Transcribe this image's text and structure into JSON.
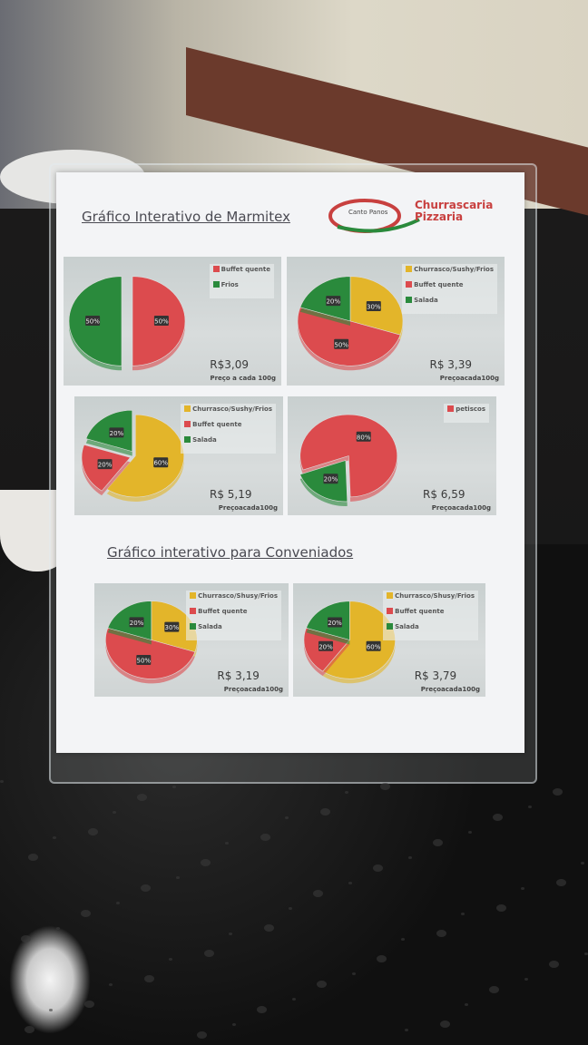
{
  "page": {
    "title_main": "Gráfico Interativo de Marmitex",
    "title_conv": "Gráfico interativo para Conveniados",
    "logo_text": "Churrascaria Pizzaria",
    "logo_script": "Canto Panos"
  },
  "colors": {
    "yellow": "#e3b52a",
    "red": "#dc4b4e",
    "green": "#2a8a3c"
  },
  "chart_data": [
    {
      "type": "pie",
      "group": "Marmitex",
      "price": "R$3,09",
      "unit": "Preço a cada 100g",
      "legend": [
        {
          "name": "Buffet quente",
          "color": "#dc4b4e"
        },
        {
          "name": "Frios",
          "color": "#2a8a3c"
        }
      ],
      "slices": [
        {
          "name": "Buffet quente",
          "value": 50,
          "label": "50%",
          "color": "#dc4b4e"
        },
        {
          "name": "Frios",
          "value": 50,
          "label": "50%",
          "color": "#2a8a3c"
        }
      ]
    },
    {
      "type": "pie",
      "group": "Marmitex",
      "price": "R$ 3,39",
      "unit": "Preçoacada100g",
      "legend": [
        {
          "name": "Churrasco/Sushy/Frios",
          "color": "#e3b52a"
        },
        {
          "name": "Buffet quente",
          "color": "#dc4b4e"
        },
        {
          "name": "Salada",
          "color": "#2a8a3c"
        }
      ],
      "slices": [
        {
          "name": "Churrasco/Sushy/Frios",
          "value": 30,
          "label": "30%",
          "color": "#e3b52a"
        },
        {
          "name": "Buffet quente",
          "value": 50,
          "label": "50%",
          "color": "#dc4b4e"
        },
        {
          "name": "Salada",
          "value": 20,
          "label": "20%",
          "color": "#2a8a3c"
        }
      ]
    },
    {
      "type": "pie",
      "group": "Marmitex",
      "price": "R$ 5,19",
      "unit": "Preçoacada100g",
      "legend": [
        {
          "name": "Churrasco/Sushy/Frios",
          "color": "#e3b52a"
        },
        {
          "name": "Buffet quente",
          "color": "#dc4b4e"
        },
        {
          "name": "Salada",
          "color": "#2a8a3c"
        }
      ],
      "slices": [
        {
          "name": "Churrasco/Sushy/Frios",
          "value": 60,
          "label": "60%",
          "color": "#e3b52a"
        },
        {
          "name": "Buffet quente",
          "value": 20,
          "label": "20%",
          "color": "#dc4b4e"
        },
        {
          "name": "Salada",
          "value": 20,
          "label": "20%",
          "color": "#2a8a3c"
        }
      ]
    },
    {
      "type": "pie",
      "group": "Marmitex",
      "price": "R$ 6,59",
      "unit": "Preçoacada100g",
      "legend": [
        {
          "name": "petiscos",
          "color": "#dc4b4e"
        }
      ],
      "slices": [
        {
          "name": "petiscos",
          "value": 80,
          "label": "80%",
          "color": "#dc4b4e"
        },
        {
          "name": "",
          "value": 20,
          "label": "20%",
          "color": "#2a8a3c"
        }
      ]
    },
    {
      "type": "pie",
      "group": "Conveniados",
      "price": "R$ 3,19",
      "unit": "Preçoacada100g",
      "legend": [
        {
          "name": "Churrasco/Shusy/Frios",
          "color": "#e3b52a"
        },
        {
          "name": "Buffet quente",
          "color": "#dc4b4e"
        },
        {
          "name": "Salada",
          "color": "#2a8a3c"
        }
      ],
      "slices": [
        {
          "name": "Churrasco/Shusy/Frios",
          "value": 30,
          "label": "30%",
          "color": "#e3b52a"
        },
        {
          "name": "Buffet quente",
          "value": 50,
          "label": "50%",
          "color": "#dc4b4e"
        },
        {
          "name": "Salada",
          "value": 20,
          "label": "20%",
          "color": "#2a8a3c"
        }
      ]
    },
    {
      "type": "pie",
      "group": "Conveniados",
      "price": "R$ 3,79",
      "unit": "Preçoacada100g",
      "legend": [
        {
          "name": "Churrasco/Shusy/Frios",
          "color": "#e3b52a"
        },
        {
          "name": "Buffet quente",
          "color": "#dc4b4e"
        },
        {
          "name": "Salada",
          "color": "#2a8a3c"
        }
      ],
      "slices": [
        {
          "name": "Churrasco/Shusy/Frios",
          "value": 60,
          "label": "60%",
          "color": "#e3b52a"
        },
        {
          "name": "Buffet quente",
          "value": 20,
          "label": "20%",
          "color": "#dc4b4e"
        },
        {
          "name": "Salada",
          "value": 20,
          "label": "20%",
          "color": "#2a8a3c"
        }
      ]
    }
  ]
}
